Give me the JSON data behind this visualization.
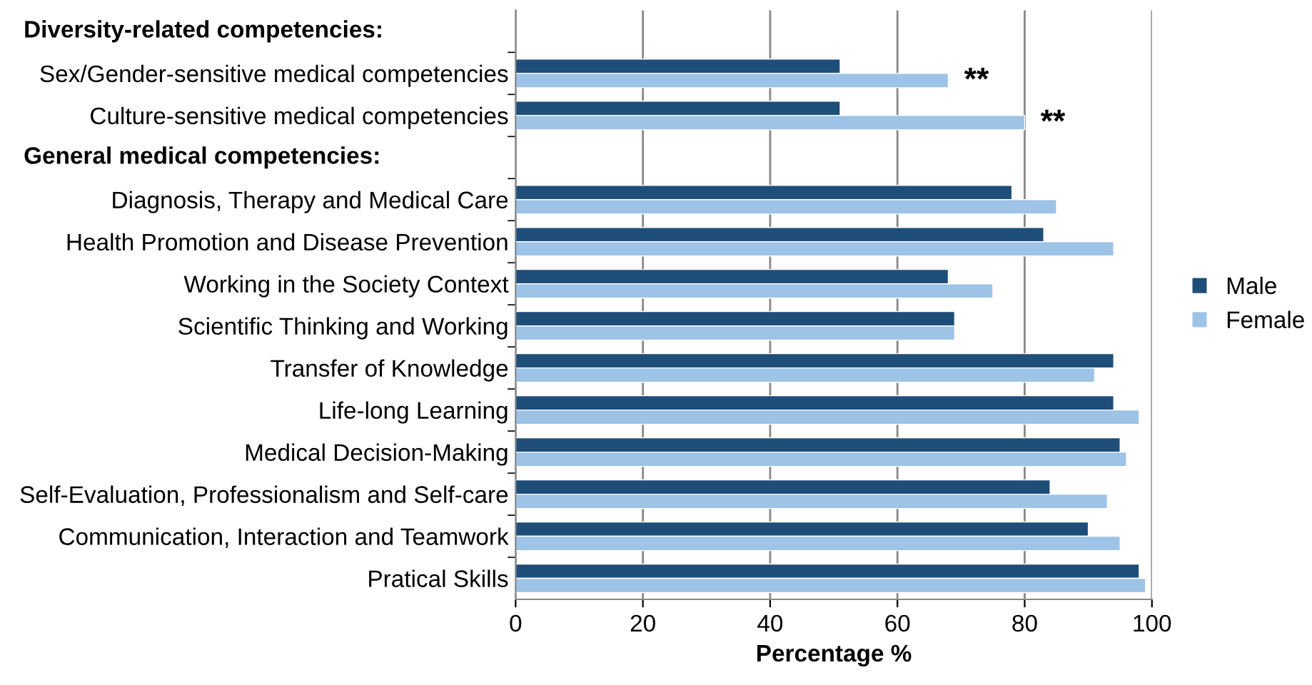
{
  "chart_data": {
    "type": "bar",
    "orientation": "horizontal",
    "xlabel": "Percentage %",
    "categories": [
      null,
      "Sex/Gender-sensitive medical competencies",
      "Culture-sensitive medical competencies",
      null,
      "Diagnosis, Therapy and Medical Care",
      "Health Promotion and Disease Prevention",
      "Working in the Society Context",
      "Scientific Thinking and Working",
      "Transfer of Knowledge",
      "Life-long Learning",
      "Medical Decision-Making",
      "Self-Evaluation, Professionalism and Self-care",
      "Communication, Interaction and Teamwork",
      "Pratical Skills"
    ],
    "series": [
      {
        "name": "Male",
        "color": "#1f4e79",
        "values": [
          null,
          51,
          51,
          null,
          78,
          83,
          68,
          69,
          94,
          94,
          95,
          84,
          90,
          98
        ]
      },
      {
        "name": "Female",
        "color": "#9dc3e6",
        "values": [
          null,
          68,
          80,
          null,
          85,
          94,
          75,
          69,
          91,
          98,
          96,
          93,
          95,
          99
        ]
      }
    ],
    "annotations": [
      "Diversity-related competencies:",
      "General medical competencies:",
      {
        "text": "**",
        "x": 68,
        "y": "Sex/Gender-sensitive medical competencies"
      },
      {
        "text": "**",
        "x": 80,
        "y": "Culture-sensitive medical competencies"
      }
    ],
    "xlim": [
      0,
      100
    ],
    "xticks": [
      0,
      20,
      40,
      60,
      80,
      100
    ],
    "grid": "x",
    "legend": "right"
  }
}
